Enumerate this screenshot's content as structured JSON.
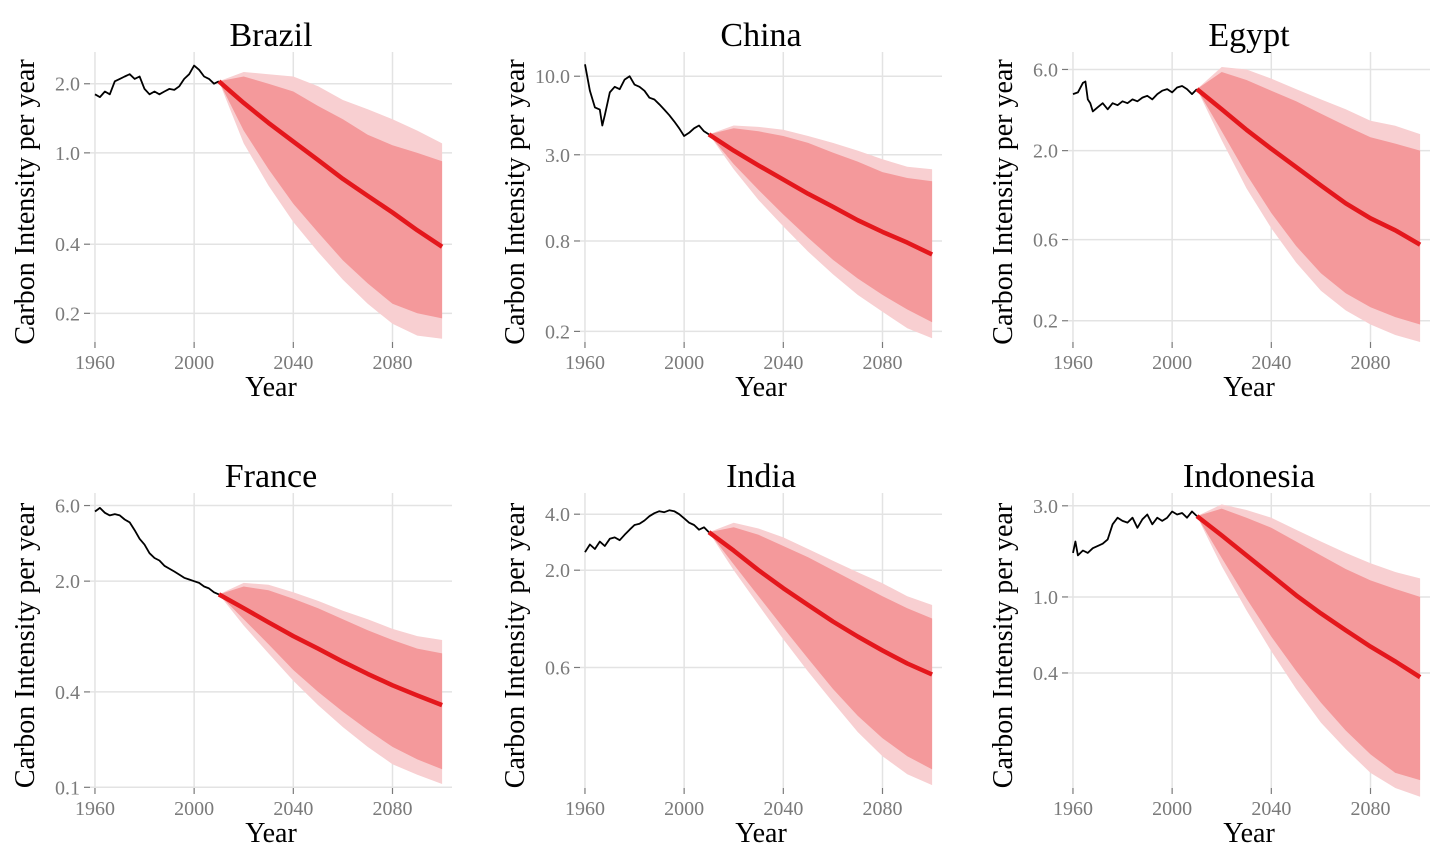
{
  "chart_data": [
    {
      "type": "line",
      "title": "Brazil",
      "xlabel": "Year",
      "ylabel": "Carbon Intensity per year",
      "y_scale": "log",
      "xlim": [
        1958,
        2104
      ],
      "ylim": [
        0.15,
        2.75
      ],
      "x_ticks": [
        1960,
        2000,
        2040,
        2080
      ],
      "y_ticks": [
        {
          "value": 0.2,
          "label": "0.2"
        },
        {
          "value": 0.4,
          "label": "0.4"
        },
        {
          "value": 1.0,
          "label": "1.0"
        },
        {
          "value": 2.0,
          "label": "2.0"
        }
      ],
      "history": {
        "x": [
          1960,
          1962,
          1964,
          1966,
          1968,
          1970,
          1972,
          1974,
          1976,
          1978,
          1980,
          1982,
          1984,
          1986,
          1988,
          1990,
          1992,
          1994,
          1996,
          1998,
          2000,
          2002,
          2004,
          2006,
          2008,
          2010
        ],
        "y": [
          1.8,
          1.75,
          1.85,
          1.8,
          2.05,
          2.1,
          2.15,
          2.2,
          2.1,
          2.15,
          1.9,
          1.8,
          1.85,
          1.8,
          1.85,
          1.9,
          1.88,
          1.95,
          2.1,
          2.2,
          2.4,
          2.3,
          2.15,
          2.1,
          2.0,
          2.05
        ]
      },
      "projection": {
        "x": [
          2010,
          2020,
          2030,
          2040,
          2050,
          2060,
          2070,
          2080,
          2090,
          2100
        ],
        "median": [
          2.05,
          1.65,
          1.35,
          1.12,
          0.93,
          0.77,
          0.65,
          0.55,
          0.46,
          0.39
        ],
        "pi80": {
          "lower": [
            2.05,
            1.25,
            0.85,
            0.6,
            0.45,
            0.34,
            0.27,
            0.22,
            0.2,
            0.19
          ],
          "upper": [
            2.05,
            2.15,
            2.0,
            1.85,
            1.6,
            1.4,
            1.2,
            1.08,
            1.0,
            0.92
          ]
        },
        "pi95": {
          "lower": [
            2.05,
            1.1,
            0.72,
            0.5,
            0.37,
            0.28,
            0.22,
            0.18,
            0.16,
            0.155
          ],
          "upper": [
            2.05,
            2.25,
            2.2,
            2.15,
            1.95,
            1.7,
            1.55,
            1.4,
            1.25,
            1.1
          ]
        }
      }
    },
    {
      "type": "line",
      "title": "China",
      "xlabel": "Year",
      "ylabel": "Carbon Intensity per year",
      "y_scale": "log",
      "xlim": [
        1958,
        2104
      ],
      "ylim": [
        0.17,
        14.5
      ],
      "x_ticks": [
        1960,
        2000,
        2040,
        2080
      ],
      "y_ticks": [
        {
          "value": 0.2,
          "label": "0.2"
        },
        {
          "value": 0.8,
          "label": "0.8"
        },
        {
          "value": 3.0,
          "label": "3.0"
        },
        {
          "value": 10.0,
          "label": "10.0"
        }
      ],
      "history": {
        "x": [
          1960,
          1962,
          1964,
          1966,
          1967,
          1968,
          1970,
          1972,
          1974,
          1976,
          1978,
          1980,
          1982,
          1984,
          1986,
          1988,
          1990,
          1992,
          1994,
          1996,
          1998,
          2000,
          2002,
          2004,
          2006,
          2008,
          2010
        ],
        "y": [
          12.0,
          8.0,
          6.2,
          6.0,
          4.7,
          5.5,
          7.8,
          8.5,
          8.2,
          9.5,
          10.0,
          8.8,
          8.5,
          8.0,
          7.2,
          7.0,
          6.5,
          6.0,
          5.5,
          5.0,
          4.5,
          4.0,
          4.2,
          4.5,
          4.7,
          4.3,
          4.1
        ]
      },
      "projection": {
        "x": [
          2010,
          2020,
          2030,
          2040,
          2050,
          2060,
          2070,
          2080,
          2090,
          2100
        ],
        "median": [
          4.1,
          3.2,
          2.55,
          2.05,
          1.65,
          1.35,
          1.1,
          0.92,
          0.78,
          0.65
        ],
        "pi80": {
          "lower": [
            4.1,
            2.6,
            1.75,
            1.2,
            0.84,
            0.6,
            0.45,
            0.35,
            0.28,
            0.23
          ],
          "upper": [
            4.1,
            4.5,
            4.3,
            4.0,
            3.6,
            3.1,
            2.7,
            2.3,
            2.1,
            2.0
          ]
        },
        "pi95": {
          "lower": [
            4.1,
            2.4,
            1.5,
            1.0,
            0.68,
            0.48,
            0.35,
            0.27,
            0.21,
            0.18
          ],
          "upper": [
            4.1,
            4.7,
            4.6,
            4.4,
            4.0,
            3.6,
            3.2,
            2.8,
            2.5,
            2.4
          ]
        }
      }
    },
    {
      "type": "line",
      "title": "Egypt",
      "xlabel": "Year",
      "ylabel": "Carbon Intensity per year",
      "y_scale": "log",
      "xlim": [
        1958,
        2104
      ],
      "ylim": [
        0.15,
        7.6
      ],
      "x_ticks": [
        1960,
        2000,
        2040,
        2080
      ],
      "y_ticks": [
        {
          "value": 0.2,
          "label": "0.2"
        },
        {
          "value": 0.6,
          "label": "0.6"
        },
        {
          "value": 2.0,
          "label": "2.0"
        },
        {
          "value": 6.0,
          "label": "6.0"
        }
      ],
      "history": {
        "x": [
          1960,
          1962,
          1964,
          1965,
          1966,
          1967,
          1968,
          1970,
          1972,
          1974,
          1976,
          1978,
          1980,
          1982,
          1984,
          1986,
          1988,
          1990,
          1992,
          1994,
          1996,
          1998,
          2000,
          2002,
          2004,
          2006,
          2008,
          2010
        ],
        "y": [
          4.3,
          4.4,
          5.0,
          5.1,
          4.0,
          3.8,
          3.4,
          3.6,
          3.8,
          3.5,
          3.8,
          3.7,
          3.9,
          3.8,
          4.0,
          3.9,
          4.1,
          4.2,
          4.0,
          4.3,
          4.5,
          4.6,
          4.4,
          4.7,
          4.8,
          4.6,
          4.3,
          4.6
        ]
      },
      "projection": {
        "x": [
          2010,
          2020,
          2030,
          2040,
          2050,
          2060,
          2070,
          2080,
          2090,
          2100
        ],
        "median": [
          4.6,
          3.5,
          2.65,
          2.05,
          1.6,
          1.25,
          0.98,
          0.8,
          0.68,
          0.56
        ],
        "pi80": {
          "lower": [
            4.6,
            2.6,
            1.45,
            0.86,
            0.55,
            0.38,
            0.29,
            0.24,
            0.21,
            0.19
          ],
          "upper": [
            4.6,
            5.8,
            5.2,
            4.5,
            3.9,
            3.3,
            2.8,
            2.4,
            2.2,
            2.0
          ]
        },
        "pi95": {
          "lower": [
            4.6,
            2.3,
            1.2,
            0.7,
            0.44,
            0.3,
            0.23,
            0.19,
            0.165,
            0.15
          ],
          "upper": [
            4.6,
            6.2,
            6.0,
            5.3,
            4.6,
            4.0,
            3.5,
            3.0,
            2.8,
            2.5
          ]
        }
      }
    },
    {
      "type": "line",
      "title": "France",
      "xlabel": "Year",
      "ylabel": "Carbon Intensity per year",
      "y_scale": "log",
      "xlim": [
        1958,
        2104
      ],
      "ylim": [
        0.099,
        7.2
      ],
      "x_ticks": [
        1960,
        2000,
        2040,
        2080
      ],
      "y_ticks": [
        {
          "value": 0.1,
          "label": "0.1"
        },
        {
          "value": 0.4,
          "label": "0.4"
        },
        {
          "value": 2.0,
          "label": "2.0"
        },
        {
          "value": 6.0,
          "label": "6.0"
        }
      ],
      "history": {
        "x": [
          1960,
          1962,
          1964,
          1966,
          1968,
          1970,
          1972,
          1974,
          1976,
          1978,
          1980,
          1982,
          1984,
          1986,
          1988,
          1990,
          1992,
          1994,
          1996,
          1998,
          2000,
          2002,
          2004,
          2006,
          2008,
          2010
        ],
        "y": [
          5.5,
          5.8,
          5.4,
          5.2,
          5.3,
          5.2,
          4.9,
          4.7,
          4.2,
          3.7,
          3.4,
          3.0,
          2.8,
          2.7,
          2.5,
          2.4,
          2.3,
          2.2,
          2.1,
          2.05,
          2.0,
          1.95,
          1.85,
          1.8,
          1.7,
          1.65
        ]
      },
      "projection": {
        "x": [
          2010,
          2020,
          2030,
          2040,
          2050,
          2060,
          2070,
          2080,
          2090,
          2100
        ],
        "median": [
          1.65,
          1.35,
          1.1,
          0.9,
          0.75,
          0.62,
          0.52,
          0.44,
          0.38,
          0.33
        ],
        "pi80": {
          "lower": [
            1.65,
            1.15,
            0.8,
            0.55,
            0.4,
            0.3,
            0.23,
            0.18,
            0.15,
            0.13
          ],
          "upper": [
            1.65,
            1.85,
            1.75,
            1.55,
            1.35,
            1.15,
            0.98,
            0.85,
            0.75,
            0.7
          ]
        },
        "pi95": {
          "lower": [
            1.65,
            1.05,
            0.7,
            0.47,
            0.33,
            0.24,
            0.18,
            0.14,
            0.12,
            0.105
          ],
          "upper": [
            1.65,
            1.95,
            1.9,
            1.7,
            1.5,
            1.3,
            1.15,
            1.0,
            0.9,
            0.85
          ]
        }
      }
    },
    {
      "type": "line",
      "title": "India",
      "xlabel": "Year",
      "ylabel": "Carbon Intensity per year",
      "y_scale": "log",
      "xlim": [
        1958,
        2104
      ],
      "ylim": [
        0.135,
        5.2
      ],
      "x_ticks": [
        1960,
        2000,
        2040,
        2080
      ],
      "y_ticks": [
        {
          "value": 0.6,
          "label": "0.6"
        },
        {
          "value": 2.0,
          "label": "2.0"
        },
        {
          "value": 4.0,
          "label": "4.0"
        }
      ],
      "history": {
        "x": [
          1960,
          1962,
          1964,
          1966,
          1968,
          1970,
          1972,
          1974,
          1976,
          1978,
          1980,
          1982,
          1984,
          1986,
          1988,
          1990,
          1992,
          1994,
          1996,
          1998,
          2000,
          2002,
          2004,
          2006,
          2008,
          2010
        ],
        "y": [
          2.5,
          2.75,
          2.6,
          2.85,
          2.7,
          2.95,
          3.0,
          2.9,
          3.1,
          3.3,
          3.5,
          3.55,
          3.7,
          3.9,
          4.05,
          4.15,
          4.1,
          4.2,
          4.15,
          4.0,
          3.8,
          3.6,
          3.5,
          3.3,
          3.4,
          3.2
        ]
      },
      "projection": {
        "x": [
          2010,
          2020,
          2030,
          2040,
          2050,
          2060,
          2070,
          2080,
          2090,
          2100
        ],
        "median": [
          3.2,
          2.55,
          2.0,
          1.6,
          1.3,
          1.06,
          0.88,
          0.74,
          0.63,
          0.55
        ],
        "pi80": {
          "lower": [
            3.2,
            2.15,
            1.45,
            0.98,
            0.67,
            0.46,
            0.33,
            0.25,
            0.2,
            0.17
          ],
          "upper": [
            3.2,
            3.4,
            3.1,
            2.7,
            2.35,
            2.0,
            1.7,
            1.45,
            1.25,
            1.1
          ]
        },
        "pi95": {
          "lower": [
            3.2,
            2.0,
            1.3,
            0.85,
            0.57,
            0.39,
            0.27,
            0.2,
            0.16,
            0.14
          ],
          "upper": [
            3.2,
            3.6,
            3.35,
            3.0,
            2.6,
            2.25,
            1.95,
            1.7,
            1.45,
            1.3
          ]
        }
      }
    },
    {
      "type": "line",
      "title": "Indonesia",
      "xlabel": "Year",
      "ylabel": "Carbon Intensity per year",
      "y_scale": "log",
      "xlim": [
        1958,
        2104
      ],
      "ylim": [
        0.1,
        3.5
      ],
      "x_ticks": [
        1960,
        2000,
        2040,
        2080
      ],
      "y_ticks": [
        {
          "value": 0.4,
          "label": "0.4"
        },
        {
          "value": 1.0,
          "label": "1.0"
        },
        {
          "value": 3.0,
          "label": "3.0"
        }
      ],
      "history": {
        "x": [
          1960,
          1961,
          1962,
          1964,
          1966,
          1968,
          1970,
          1972,
          1974,
          1976,
          1978,
          1980,
          1982,
          1984,
          1986,
          1988,
          1990,
          1992,
          1994,
          1996,
          1998,
          2000,
          2002,
          2004,
          2006,
          2008,
          2010
        ],
        "y": [
          1.7,
          1.95,
          1.65,
          1.75,
          1.7,
          1.8,
          1.85,
          1.9,
          2.0,
          2.4,
          2.6,
          2.5,
          2.45,
          2.6,
          2.3,
          2.55,
          2.7,
          2.4,
          2.6,
          2.5,
          2.6,
          2.8,
          2.7,
          2.75,
          2.6,
          2.8,
          2.65
        ]
      },
      "projection": {
        "x": [
          2010,
          2020,
          2030,
          2040,
          2050,
          2060,
          2070,
          2080,
          2090,
          2100
        ],
        "median": [
          2.65,
          2.1,
          1.65,
          1.3,
          1.02,
          0.82,
          0.67,
          0.55,
          0.46,
          0.38
        ],
        "pi80": {
          "lower": [
            2.65,
            1.6,
            0.98,
            0.62,
            0.41,
            0.28,
            0.2,
            0.15,
            0.12,
            0.11
          ],
          "upper": [
            2.65,
            2.9,
            2.6,
            2.3,
            1.95,
            1.65,
            1.4,
            1.22,
            1.1,
            1.0
          ]
        },
        "pi95": {
          "lower": [
            2.65,
            1.45,
            0.85,
            0.52,
            0.33,
            0.22,
            0.16,
            0.12,
            0.1,
            0.09
          ],
          "upper": [
            2.65,
            3.05,
            2.85,
            2.6,
            2.25,
            1.95,
            1.7,
            1.5,
            1.35,
            1.25
          ]
        }
      }
    }
  ]
}
